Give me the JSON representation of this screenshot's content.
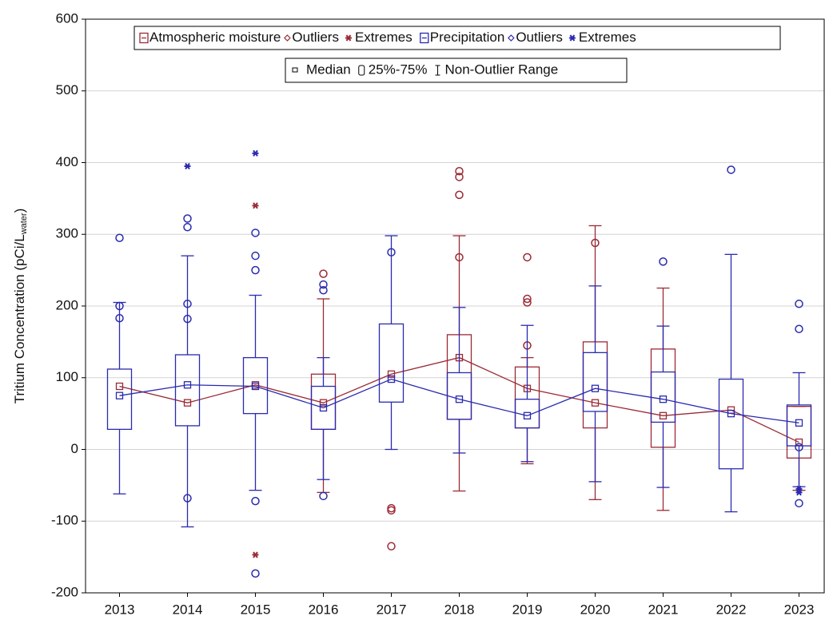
{
  "chart_data": {
    "type": "boxplot",
    "y_label": {
      "main": "Tritium Concentration (pCi/L",
      "sub": "water",
      "end": ")"
    },
    "categories": [
      "2013",
      "2014",
      "2015",
      "2016",
      "2017",
      "2018",
      "2019",
      "2020",
      "2021",
      "2022",
      "2023"
    ],
    "ylim": [
      -200,
      600
    ],
    "yticks": [
      -200,
      -100,
      0,
      100,
      200,
      300,
      400,
      500,
      600
    ],
    "grid": true,
    "legend_key": {
      "median": "Median",
      "box": "25%-75%",
      "whisker": "Non-Outlier Range"
    },
    "series": [
      {
        "name": "Atmospheric moisture",
        "color": "#9b2a35",
        "outlier_label": "Outliers",
        "extreme_label": "Extremes",
        "median": [
          88,
          65,
          90,
          65,
          105,
          128,
          85,
          65,
          47,
          55,
          10
        ],
        "q1": [
          null,
          null,
          null,
          28,
          null,
          42,
          30,
          30,
          3,
          null,
          -12
        ],
        "q3": [
          null,
          null,
          null,
          105,
          null,
          160,
          115,
          150,
          140,
          null,
          60
        ],
        "min": [
          null,
          null,
          null,
          -60,
          null,
          -58,
          -20,
          -70,
          -85,
          null,
          -57
        ],
        "max": [
          null,
          null,
          null,
          210,
          null,
          298,
          128,
          312,
          225,
          null,
          60
        ],
        "outliers": [
          [],
          [],
          [],
          [
            245
          ],
          [
            -82,
            -85,
            -135
          ],
          [
            388,
            380,
            355,
            268
          ],
          [
            268,
            210,
            205,
            145
          ],
          [
            288
          ],
          [],
          [],
          []
        ],
        "extremes": [
          [],
          [],
          [
            340,
            -147
          ],
          [],
          [],
          [],
          [],
          [],
          [],
          [],
          []
        ]
      },
      {
        "name": "Precipitation",
        "color": "#2a2ab0",
        "outlier_label": "Outliers",
        "extreme_label": "Extremes",
        "median": [
          75,
          90,
          88,
          58,
          98,
          70,
          47,
          85,
          70,
          50,
          37
        ],
        "q1": [
          28,
          33,
          50,
          28,
          66,
          42,
          30,
          53,
          38,
          -27,
          5
        ],
        "q3": [
          112,
          132,
          128,
          88,
          175,
          107,
          70,
          135,
          108,
          98,
          62
        ],
        "min": [
          -62,
          -108,
          -57,
          -42,
          0,
          -5,
          -17,
          -45,
          -53,
          -87,
          -52
        ],
        "max": [
          205,
          270,
          215,
          128,
          298,
          198,
          173,
          228,
          172,
          272,
          107
        ],
        "outliers": [
          [
            295,
            200,
            183
          ],
          [
            322,
            310,
            203,
            182,
            -68
          ],
          [
            302,
            270,
            250,
            -72,
            -173
          ],
          [
            230,
            222,
            -65
          ],
          [
            275
          ],
          [],
          [],
          [],
          [
            262
          ],
          [
            390
          ],
          [
            203,
            168,
            3,
            -75
          ]
        ],
        "extremes": [
          [],
          [
            395
          ],
          [
            413
          ],
          [],
          [],
          [],
          [],
          [],
          [],
          [],
          [
            -55,
            -60
          ]
        ]
      }
    ]
  }
}
